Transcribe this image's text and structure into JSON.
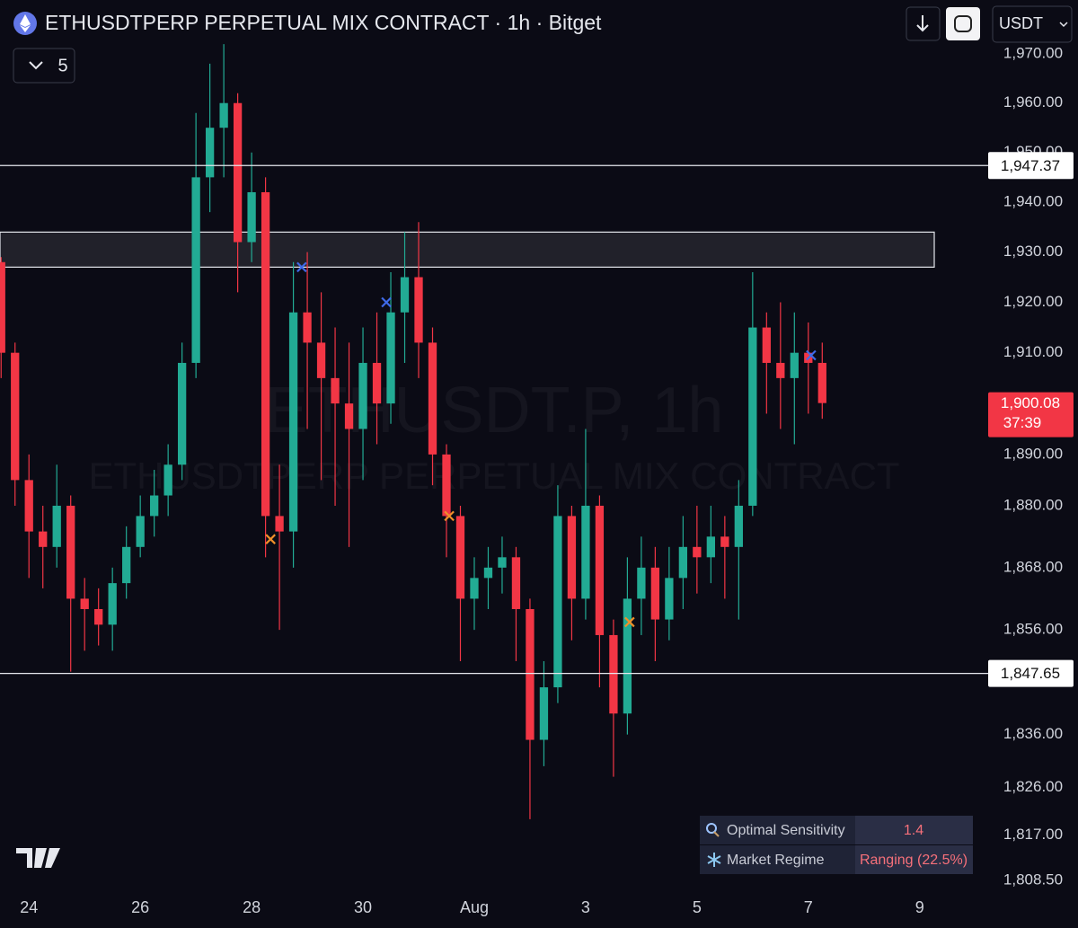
{
  "header": {
    "title": "ETHUSDTPERP PERPETUAL MIX CONTRACT · 1h · Bitget",
    "indicator_count": "5",
    "currency": "USDT"
  },
  "watermark": {
    "symbol": "ETHUSDT.P, 1h",
    "description": "ETHUSDTPERP PERPETUAL MIX CONTRACT"
  },
  "chart_data": {
    "type": "candlestick",
    "log_scale": true,
    "up_color": "#22ab94",
    "down_color": "#f23645",
    "x": [
      23.5,
      23.75,
      24,
      24.25,
      24.5,
      24.75,
      25,
      25.25,
      25.5,
      25.75,
      26,
      26.25,
      26.5,
      26.75,
      27,
      27.25,
      27.5,
      27.75,
      28,
      28.25,
      28.5,
      28.75,
      29,
      29.25,
      29.5,
      29.75,
      30,
      30.25,
      30.5,
      30.75,
      31,
      31.25,
      31.5,
      31.75,
      32,
      32.25,
      32.5,
      32.75,
      33,
      33.25,
      33.5,
      33.75,
      34,
      34.25,
      34.5,
      34.75,
      35,
      35.25,
      35.5,
      35.75,
      36,
      36.25,
      36.5,
      36.75,
      37,
      37.25,
      37.5,
      37.75,
      38,
      38.25
    ],
    "open": [
      1928,
      1910,
      1885,
      1875,
      1872,
      1880,
      1862,
      1860,
      1857,
      1865,
      1872,
      1878,
      1882,
      1888,
      1908,
      1945,
      1955,
      1960,
      1932,
      1942,
      1878,
      1875,
      1918,
      1912,
      1905,
      1900,
      1895,
      1908,
      1900,
      1918,
      1925,
      1912,
      1890,
      1878,
      1862,
      1866,
      1868,
      1870,
      1860,
      1835,
      1845,
      1878,
      1862,
      1880,
      1855,
      1840,
      1862,
      1868,
      1858,
      1866,
      1872,
      1870,
      1874,
      1872,
      1880,
      1915,
      1908,
      1905,
      1910,
      1908
    ],
    "high": [
      1929,
      1912,
      1890,
      1880,
      1888,
      1882,
      1866,
      1864,
      1868,
      1876,
      1882,
      1887,
      1892,
      1912,
      1958,
      1968,
      1972,
      1962,
      1950,
      1945,
      1888,
      1928,
      1930,
      1922,
      1915,
      1912,
      1915,
      1918,
      1926,
      1934,
      1936,
      1915,
      1892,
      1880,
      1870,
      1872,
      1874,
      1872,
      1862,
      1850,
      1884,
      1880,
      1895,
      1882,
      1858,
      1870,
      1874,
      1872,
      1872,
      1878,
      1880,
      1880,
      1878,
      1885,
      1926,
      1918,
      1920,
      1918,
      1916,
      1912
    ],
    "low": [
      1905,
      1880,
      1866,
      1864,
      1868,
      1848,
      1852,
      1853,
      1852,
      1862,
      1870,
      1874,
      1878,
      1885,
      1905,
      1938,
      1945,
      1922,
      1928,
      1870,
      1856,
      1868,
      1895,
      1885,
      1880,
      1872,
      1885,
      1892,
      1896,
      1908,
      1905,
      1884,
      1870,
      1850,
      1856,
      1860,
      1863,
      1850,
      1820,
      1830,
      1842,
      1854,
      1858,
      1845,
      1828,
      1836,
      1855,
      1850,
      1854,
      1860,
      1863,
      1865,
      1862,
      1858,
      1878,
      1898,
      1895,
      1892,
      1898,
      1897
    ],
    "close": [
      1910,
      1885,
      1875,
      1872,
      1880,
      1862,
      1860,
      1857,
      1865,
      1872,
      1878,
      1882,
      1888,
      1908,
      1945,
      1955,
      1960,
      1932,
      1942,
      1878,
      1875,
      1918,
      1912,
      1905,
      1900,
      1895,
      1908,
      1900,
      1918,
      1925,
      1912,
      1890,
      1878,
      1862,
      1866,
      1868,
      1870,
      1860,
      1835,
      1845,
      1878,
      1862,
      1880,
      1855,
      1840,
      1862,
      1868,
      1858,
      1866,
      1872,
      1870,
      1874,
      1872,
      1880,
      1915,
      1908,
      1905,
      1910,
      1908,
      1900.08
    ],
    "xlim": [
      23.48,
      41.15
    ],
    "xticks": [
      24,
      26,
      28,
      30,
      {
        "value": 32,
        "label": "Aug"
      },
      {
        "value": 34,
        "label": "3"
      },
      {
        "value": 36,
        "label": "5"
      },
      {
        "value": 38,
        "label": "7"
      },
      {
        "value": 40,
        "label": "9"
      }
    ],
    "ylim": [
      1808.5,
      1970
    ],
    "yticks": [
      {
        "value": 1970,
        "label": "1,970.00"
      },
      {
        "value": 1960,
        "label": "1,960.00"
      },
      {
        "value": 1950,
        "label": "1,950.00"
      },
      {
        "value": 1940,
        "label": "1,940.00"
      },
      {
        "value": 1930,
        "label": "1,930.00"
      },
      {
        "value": 1920,
        "label": "1,920.00"
      },
      {
        "value": 1910,
        "label": "1,910.00"
      },
      {
        "value": 1890,
        "label": "1,890.00"
      },
      {
        "value": 1880,
        "label": "1,880.00"
      },
      {
        "value": 1868,
        "label": "1,868.00"
      },
      {
        "value": 1856,
        "label": "1,856.00"
      },
      {
        "value": 1836,
        "label": "1,836.00"
      },
      {
        "value": 1826,
        "label": "1,826.00"
      },
      {
        "value": 1817,
        "label": "1,817.00"
      },
      {
        "value": 1808.5,
        "label": "1,808.50"
      }
    ],
    "zone": [
      1927,
      1934
    ],
    "levels": [
      {
        "value": 1947.37,
        "label": "1,947.37"
      },
      {
        "value": 1847.65,
        "label": "1,847.65"
      }
    ],
    "last_price": {
      "value": 1900.08,
      "label": "1,900.08"
    },
    "countdown": "37:39",
    "markers": [
      {
        "x": 28.9,
        "y": 1927,
        "color": "#3f6ae8"
      },
      {
        "x": 30.42,
        "y": 1920,
        "color": "#3f6ae8"
      },
      {
        "x": 38.05,
        "y": 1909.5,
        "color": "#3f6ae8"
      },
      {
        "x": 28.34,
        "y": 1873.5,
        "color": "#f0902a"
      },
      {
        "x": 31.55,
        "y": 1878,
        "color": "#f0902a"
      },
      {
        "x": 34.79,
        "y": 1857.5,
        "color": "#f0902a"
      }
    ]
  },
  "table": {
    "rows": [
      [
        "Optimal Sensitivity",
        "1.4"
      ],
      [
        "Market Regime",
        "Ranging (22.5%)"
      ]
    ]
  }
}
